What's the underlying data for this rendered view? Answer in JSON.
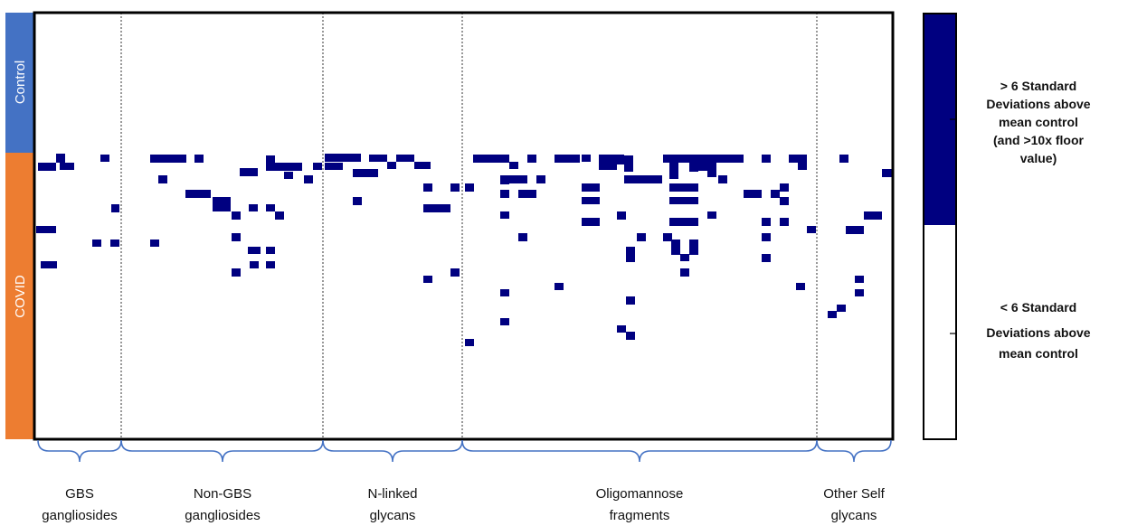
{
  "chart_data": {
    "type": "heatmap",
    "row_groups": [
      {
        "label": "Control",
        "color": "#4472c4"
      },
      {
        "label": "COVID",
        "color": "#ed7d31"
      }
    ],
    "column_groups": [
      {
        "line1": "GBS",
        "line2": "gangliosides"
      },
      {
        "line1": "Non-GBS",
        "line2": "gangliosides"
      },
      {
        "line1": "N-linked",
        "line2": "glycans"
      },
      {
        "line1": "Oligomannose",
        "line2": "fragments"
      },
      {
        "line1": "Other Self",
        "line2": "glycans"
      }
    ],
    "legend": [
      {
        "label": [
          "> 6 Standard",
          "Deviations above",
          "mean control",
          "(and >10x floor",
          "value)"
        ],
        "color": "#000080"
      },
      {
        "label": [
          "< 6 Standard",
          "Deviations above",
          "mean control"
        ],
        "color": "#ffffff"
      }
    ],
    "colors": {
      "high": "#000080",
      "low": "#ffffff",
      "bracket": "#4472c4"
    }
  }
}
